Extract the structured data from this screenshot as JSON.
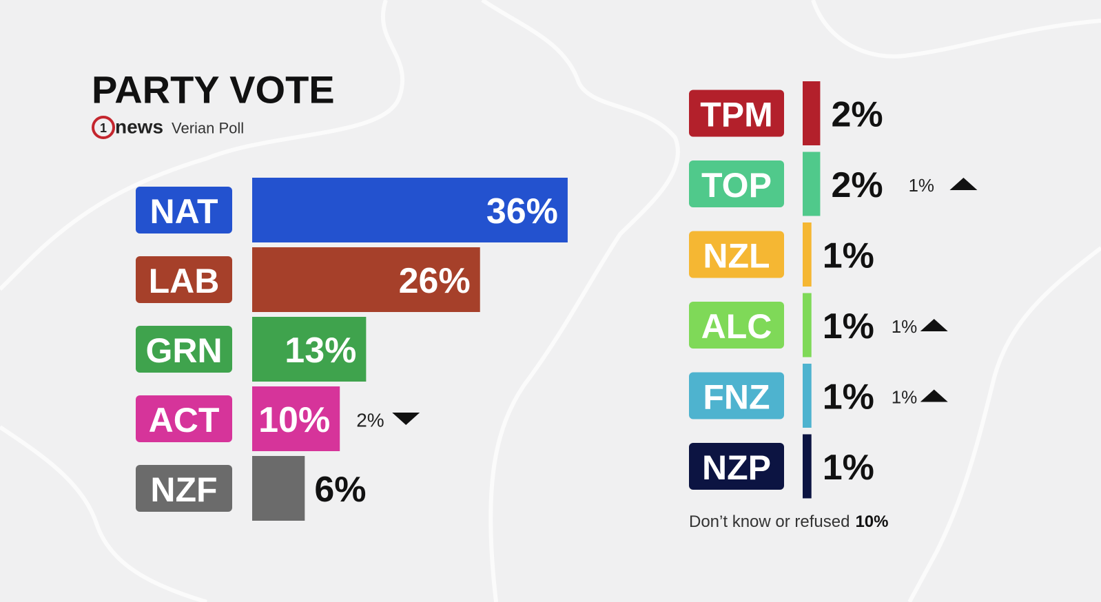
{
  "chart_data": [
    {
      "type": "hbar",
      "title": "PARTY VOTE",
      "logo_mark": "1",
      "logo_text": "news",
      "source": "Verian Poll",
      "categories": [
        "NAT",
        "LAB",
        "GRN",
        "ACT",
        "NZF"
      ],
      "values": [
        36,
        26,
        13,
        10,
        6
      ],
      "value_labels": [
        "36%",
        "26%",
        "13%",
        "10%",
        "6%"
      ],
      "colors": [
        "#2352cf",
        "#a6402a",
        "#3fa34d",
        "#d6349a",
        "#6b6b6b"
      ],
      "changes": [
        null,
        null,
        null,
        -2,
        null
      ],
      "change_labels": [
        null,
        null,
        null,
        "2%",
        null
      ]
    },
    {
      "type": "stripe",
      "categories": [
        "TPM",
        "TOP",
        "NZL",
        "ALC",
        "FNZ",
        "NZP"
      ],
      "values": [
        2,
        2,
        1,
        1,
        1,
        1
      ],
      "value_labels": [
        "2%",
        "2%",
        "1%",
        "1%",
        "1%",
        "1%"
      ],
      "colors": [
        "#b3202b",
        "#50c98b",
        "#f5b733",
        "#7fd958",
        "#4eb3cf",
        "#0c1442"
      ],
      "changes": [
        null,
        1,
        null,
        1,
        1,
        null
      ],
      "change_labels": [
        null,
        "1%",
        null,
        "1%",
        "1%",
        null
      ],
      "note": "Don’t know or refused",
      "note_value": "10%"
    }
  ]
}
